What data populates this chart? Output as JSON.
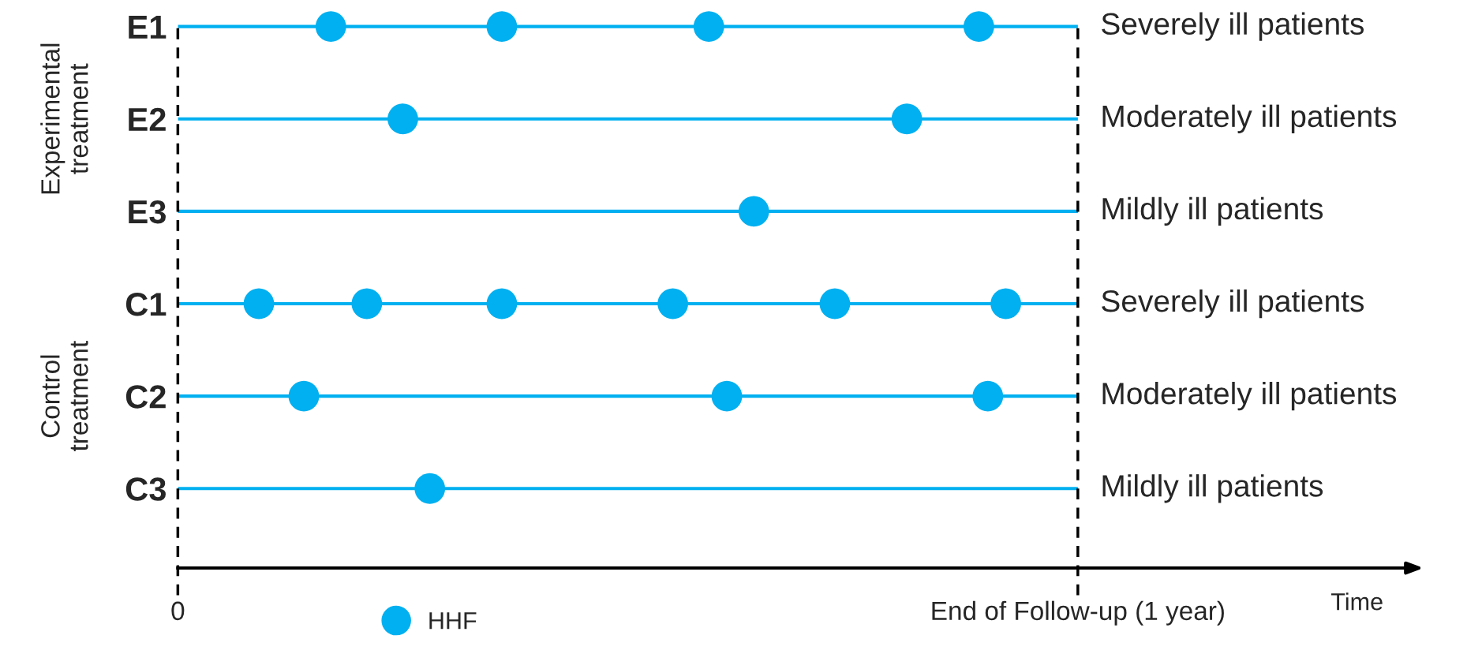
{
  "chart_data": {
    "type": "scatter",
    "orientation": "horizontal",
    "categories": [
      "E1",
      "E2",
      "E3",
      "C1",
      "C2",
      "C3"
    ],
    "y2_categories": [
      "Severely ill patients",
      "Moderately ill patients",
      "Mildly ill patients",
      "Severely ill patients",
      "Moderately ill patients",
      "Mildly ill patients"
    ],
    "series": [
      {
        "name": "HHF",
        "color": "#00b0f0",
        "values": [
          0.17,
          0.25,
          0.64,
          0.09,
          0.14,
          0.28
        ]
      },
      {
        "color": "#00b0f0",
        "values": [
          0.36,
          0.81,
          null,
          0.21,
          0.61,
          null
        ]
      },
      {
        "color": "#00b0f0",
        "values": [
          0.59,
          null,
          null,
          0.36,
          0.9,
          null
        ]
      },
      {
        "color": "#00b0f0",
        "values": [
          0.89,
          null,
          null,
          0.55,
          null,
          null
        ]
      },
      {
        "color": "#00b0f0",
        "values": [
          null,
          null,
          null,
          0.73,
          null,
          null
        ]
      },
      {
        "color": "#00b0f0",
        "values": [
          null,
          null,
          null,
          0.92,
          null,
          null
        ]
      }
    ],
    "marker": "circle",
    "grid": "y",
    "xlim": [
      0,
      1.37
    ],
    "xticks": [
      0,
      {
        "value": 1,
        "label": "End of Follow-up (1 year)"
      }
    ],
    "xlabel": "Time",
    "ref_lines": [
      {
        "axis": "x",
        "value": 0,
        "color": "#000000",
        "line_style": "dashed"
      },
      {
        "axis": "x",
        "value": 1,
        "color": "#000000",
        "line_style": "dashed"
      }
    ],
    "annotations": [
      "Experimental\ntreatment",
      "Control\ntreatment"
    ],
    "legend": "bottom left"
  }
}
